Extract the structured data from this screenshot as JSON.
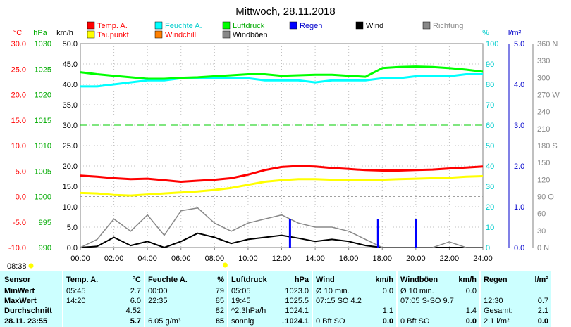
{
  "title": "Mittwoch, 28.11.2018",
  "time_marker": "08:38",
  "axis_headers": {
    "temp_unit": "°C",
    "pressure_unit": "hPa",
    "wind_unit": "km/h",
    "humidity_unit": "%",
    "rain_unit": "l/m²"
  },
  "legend": [
    {
      "label": "Temp. A.",
      "color": "#ff0000",
      "text_color": "#ff0000"
    },
    {
      "label": "Feuchte A.",
      "color": "#00ffff",
      "text_color": "#00cccc"
    },
    {
      "label": "Luftdruck",
      "color": "#00ff00",
      "text_color": "#00aa00"
    },
    {
      "label": "Regen",
      "color": "#0000ff",
      "text_color": "#0000cc"
    },
    {
      "label": "Wind",
      "color": "#000000",
      "text_color": "#000000"
    },
    {
      "label": "Richtung",
      "color": "#888888",
      "text_color": "#888888"
    },
    {
      "label": "Taupunkt",
      "color": "#ffff00",
      "text_color": "#ff0000"
    },
    {
      "label": "Windchill",
      "color": "#ff8000",
      "text_color": "#ff0000"
    },
    {
      "label": "Windböen",
      "color": "#888888",
      "text_color": "#000000"
    }
  ],
  "chart_data": {
    "type": "line",
    "x_unit": "time of day",
    "x_ticks": [
      "00:00",
      "02:00",
      "04:00",
      "06:00",
      "08:00",
      "10:00",
      "12:00",
      "14:00",
      "16:00",
      "18:00",
      "20:00",
      "22:00",
      "24:00"
    ],
    "axes": {
      "temp": {
        "ticks": [
          "30.0",
          "25.0",
          "20.0",
          "15.0",
          "10.0",
          "5.0",
          "0.0",
          "-5.0",
          "-10.0"
        ],
        "range": [
          -10,
          30
        ],
        "color": "#ff0000"
      },
      "pressure": {
        "ticks": [
          "1030",
          "1025",
          "1020",
          "1015",
          "1010",
          "1005",
          "1000",
          "995",
          "990"
        ],
        "range": [
          990,
          1030
        ],
        "color": "#00aa00"
      },
      "wind": {
        "ticks": [
          "50.0",
          "45.0",
          "40.0",
          "35.0",
          "30.0",
          "25.0",
          "20.0",
          "15.0",
          "10.0",
          "5.0",
          "0.0"
        ],
        "range": [
          0,
          50
        ],
        "color": "#000000"
      },
      "humidity": {
        "ticks": [
          "100",
          "90",
          "80",
          "70",
          "60",
          "50",
          "40",
          "30",
          "20",
          "10",
          "0"
        ],
        "range": [
          0,
          100
        ],
        "color": "#00cccc"
      },
      "rain": {
        "ticks": [
          "5.0",
          "4.0",
          "3.0",
          "2.0",
          "1.0",
          "0.0"
        ],
        "range": [
          0,
          5
        ],
        "color": "#0000cc"
      },
      "direction": {
        "ticks": [
          "360 N",
          "330",
          "300",
          "270 W",
          "240",
          "210",
          "180 S",
          "150",
          "120",
          "90 O",
          "60",
          "30",
          "0 N"
        ],
        "range": [
          0,
          360
        ],
        "color": "#888888"
      }
    },
    "series": [
      {
        "name": "Temp. A.",
        "axis": "temp",
        "color": "#ff0000",
        "x": [
          0,
          1,
          2,
          3,
          4,
          5,
          6,
          7,
          8,
          9,
          10,
          11,
          12,
          13,
          14,
          15,
          16,
          17,
          18,
          19,
          20,
          21,
          22,
          23,
          24
        ],
        "values": [
          4.1,
          3.9,
          3.6,
          3.4,
          3.5,
          3.2,
          2.9,
          3.1,
          3.3,
          3.6,
          4.3,
          5.2,
          5.8,
          6.0,
          5.9,
          5.6,
          5.4,
          5.2,
          5.1,
          5.1,
          5.2,
          5.3,
          5.5,
          5.7,
          5.9
        ]
      },
      {
        "name": "Taupunkt",
        "axis": "temp",
        "color": "#ffff00",
        "x": [
          0,
          1,
          2,
          3,
          4,
          5,
          6,
          7,
          8,
          9,
          10,
          11,
          12,
          13,
          14,
          15,
          16,
          17,
          18,
          19,
          20,
          21,
          22,
          23,
          24
        ],
        "values": [
          0.7,
          0.6,
          0.3,
          0.2,
          0.4,
          0.6,
          0.8,
          1.0,
          1.3,
          1.7,
          2.3,
          2.9,
          3.2,
          3.4,
          3.4,
          3.3,
          3.2,
          3.2,
          3.3,
          3.4,
          3.5,
          3.6,
          3.7,
          3.9,
          4.0
        ]
      },
      {
        "name": "Feuchte A.",
        "axis": "humidity",
        "color": "#00ffff",
        "x": [
          0,
          1,
          2,
          3,
          4,
          5,
          6,
          7,
          8,
          9,
          10,
          11,
          12,
          13,
          14,
          15,
          16,
          17,
          18,
          19,
          20,
          21,
          22,
          23,
          24
        ],
        "values": [
          79,
          79,
          80,
          81,
          82,
          82,
          83,
          83,
          83,
          83,
          83,
          82,
          82,
          82,
          81,
          82,
          82,
          82,
          83,
          83,
          84,
          84,
          84,
          85,
          85
        ]
      },
      {
        "name": "Luftdruck",
        "axis": "pressure",
        "color": "#00ff00",
        "x": [
          0,
          1,
          2,
          3,
          4,
          5,
          6,
          7,
          8,
          9,
          10,
          11,
          12,
          13,
          14,
          15,
          16,
          17,
          18,
          19,
          20,
          21,
          22,
          23,
          24
        ],
        "values": [
          1024.4,
          1024.0,
          1023.7,
          1023.4,
          1023.1,
          1023.1,
          1023.3,
          1023.4,
          1023.6,
          1023.8,
          1024.0,
          1024.0,
          1023.7,
          1023.8,
          1023.9,
          1023.9,
          1023.7,
          1023.5,
          1025.2,
          1025.4,
          1025.5,
          1025.4,
          1025.2,
          1024.9,
          1024.5
        ]
      },
      {
        "name": "Wind",
        "axis": "wind",
        "color": "#000000",
        "x": [
          0,
          1,
          2,
          3,
          4,
          5,
          6,
          7,
          8,
          9,
          10,
          11,
          12,
          13,
          14,
          15,
          16,
          17,
          18,
          19,
          20,
          21,
          22,
          23,
          24
        ],
        "values": [
          0,
          0.3,
          2.5,
          0.5,
          1.5,
          0,
          1.5,
          3.5,
          2.5,
          1,
          2,
          2.5,
          3,
          2.3,
          1.5,
          2,
          1.5,
          0.5,
          0,
          0,
          0,
          0,
          0,
          0,
          0
        ]
      },
      {
        "name": "Windböen",
        "axis": "wind",
        "color": "#888888",
        "x": [
          0,
          1,
          2,
          3,
          4,
          5,
          6,
          7,
          8,
          9,
          10,
          11,
          12,
          13,
          14,
          15,
          16,
          17,
          18,
          19,
          20,
          21,
          22,
          23,
          24
        ],
        "values": [
          0,
          2,
          7,
          4,
          8,
          3,
          9,
          9.7,
          6,
          4,
          6,
          7,
          8,
          6,
          5,
          5,
          4,
          2,
          0,
          0,
          0,
          0,
          1.4,
          0,
          0
        ]
      },
      {
        "name": "Regen",
        "axis": "rain",
        "color": "#0000ff",
        "x": [
          12.5,
          17.75,
          20.0
        ],
        "values": [
          0.7,
          0.7,
          0.7
        ]
      }
    ],
    "grid": true
  },
  "table": {
    "row_labels": [
      "Sensor",
      "MinWert",
      "MaxWert",
      "Durchschnitt",
      "28.11. 23:55"
    ],
    "columns": [
      {
        "header": "Temp. A.",
        "unit": "°C",
        "rows": [
          [
            "05:45",
            "2.7"
          ],
          [
            "14:20",
            "6.0"
          ],
          [
            "",
            "4.52"
          ],
          [
            "",
            "5.7"
          ]
        ]
      },
      {
        "header": "Feuchte A.",
        "unit": "%",
        "rows": [
          [
            "00:00",
            "79"
          ],
          [
            "22:35",
            "85"
          ],
          [
            "",
            "82"
          ],
          [
            "6.05 g/m³",
            "85"
          ]
        ]
      },
      {
        "header": "Luftdruck",
        "unit": "hPa",
        "rows": [
          [
            "05:05",
            "1023.0"
          ],
          [
            "19:45",
            "1025.5"
          ],
          [
            "^2.3hPa/h",
            "1024.1"
          ],
          [
            "sonnig",
            "↓1024.1"
          ]
        ]
      },
      {
        "header": "Wind",
        "unit": "km/h",
        "rows": [
          [
            "Ø 10 min.",
            "0.0"
          ],
          [
            "07:15   SO 4.2",
            ""
          ],
          [
            "",
            "1.1"
          ],
          [
            "0 Bft SO",
            "0.0"
          ]
        ]
      },
      {
        "header": "Windböen",
        "unit": "km/h",
        "rows": [
          [
            "Ø 10 min.",
            "0.0"
          ],
          [
            "07:05   S-SO 9.7",
            ""
          ],
          [
            "",
            "1.4"
          ],
          [
            "0 Bft SO",
            "0.0"
          ]
        ]
      },
      {
        "header": "Regen",
        "unit": "l/m²",
        "rows": [
          [
            "",
            ""
          ],
          [
            "12:30",
            "0.7"
          ],
          [
            "Gesamt:",
            "2.1"
          ],
          [
            "2.1 l/m²",
            "0.0"
          ]
        ]
      }
    ]
  }
}
